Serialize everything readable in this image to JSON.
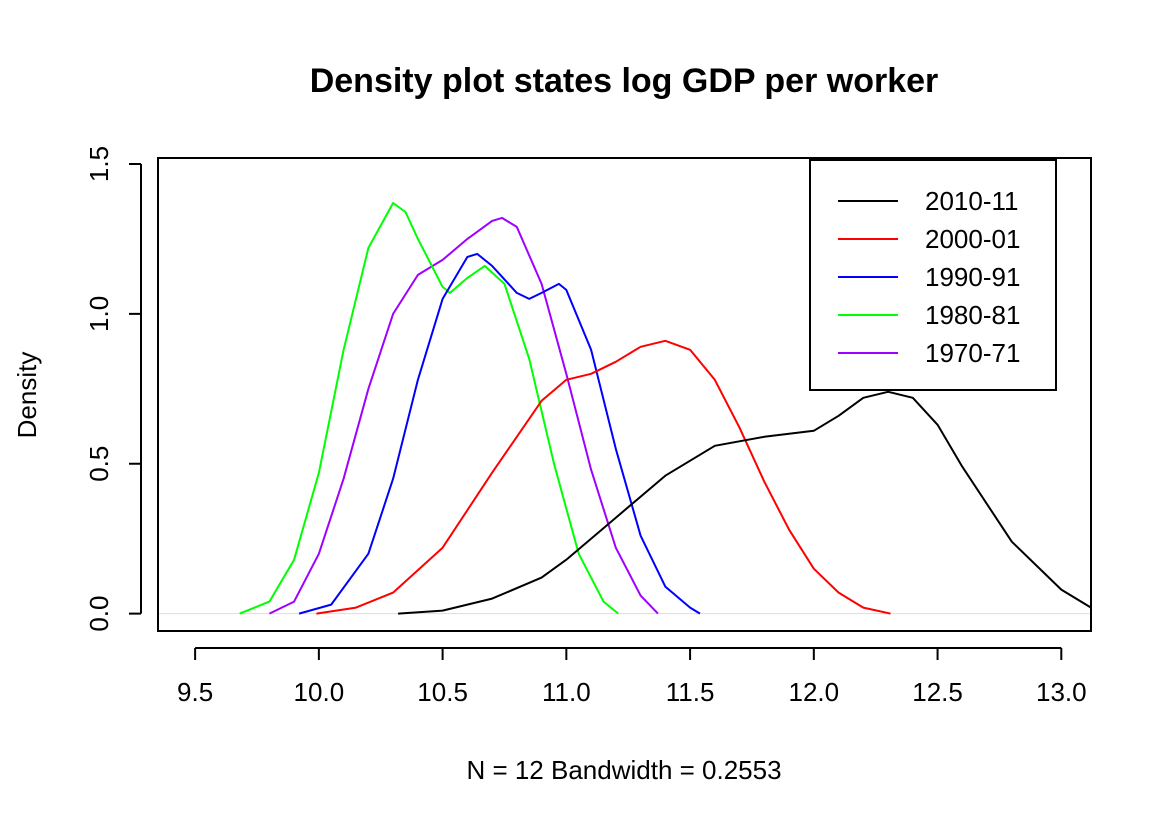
{
  "chart_data": {
    "type": "line",
    "title": "Density plot states log GDP per worker",
    "xlabel": "N = 12   Bandwidth = 0.2553",
    "ylabel": "Density",
    "xlim": [
      9.35,
      13.12
    ],
    "ylim": [
      -0.058,
      1.52
    ],
    "x_ticks": [
      9.5,
      10.0,
      10.5,
      11.0,
      11.5,
      12.0,
      12.5,
      13.0
    ],
    "x_tick_labels": [
      "9.5",
      "10.0",
      "10.5",
      "11.0",
      "11.5",
      "12.0",
      "12.5",
      "13.0"
    ],
    "y_ticks": [
      0.0,
      0.5,
      1.0,
      1.5
    ],
    "y_tick_labels": [
      "0.0",
      "0.5",
      "1.0",
      "1.5"
    ],
    "grid": false,
    "legend_position": "top-right",
    "series": [
      {
        "name": "2010-11",
        "color": "#000000",
        "points": [
          [
            10.32,
            0.0
          ],
          [
            10.5,
            0.01
          ],
          [
            10.7,
            0.05
          ],
          [
            10.9,
            0.12
          ],
          [
            11.0,
            0.18
          ],
          [
            11.2,
            0.32
          ],
          [
            11.4,
            0.46
          ],
          [
            11.6,
            0.56
          ],
          [
            11.8,
            0.59
          ],
          [
            12.0,
            0.61
          ],
          [
            12.1,
            0.66
          ],
          [
            12.2,
            0.72
          ],
          [
            12.3,
            0.74
          ],
          [
            12.4,
            0.72
          ],
          [
            12.5,
            0.63
          ],
          [
            12.6,
            0.49
          ],
          [
            12.8,
            0.24
          ],
          [
            13.0,
            0.08
          ],
          [
            13.12,
            0.02
          ]
        ]
      },
      {
        "name": "2000-01",
        "color": "#ff0000",
        "points": [
          [
            9.99,
            0.0
          ],
          [
            10.15,
            0.02
          ],
          [
            10.3,
            0.07
          ],
          [
            10.5,
            0.22
          ],
          [
            10.7,
            0.47
          ],
          [
            10.9,
            0.71
          ],
          [
            11.0,
            0.78
          ],
          [
            11.1,
            0.8
          ],
          [
            11.2,
            0.84
          ],
          [
            11.3,
            0.89
          ],
          [
            11.4,
            0.91
          ],
          [
            11.5,
            0.88
          ],
          [
            11.6,
            0.78
          ],
          [
            11.7,
            0.62
          ],
          [
            11.8,
            0.44
          ],
          [
            11.9,
            0.28
          ],
          [
            12.0,
            0.15
          ],
          [
            12.1,
            0.07
          ],
          [
            12.2,
            0.02
          ],
          [
            12.31,
            0.0
          ]
        ]
      },
      {
        "name": "1990-91",
        "color": "#0000ff",
        "points": [
          [
            9.92,
            0.0
          ],
          [
            10.05,
            0.03
          ],
          [
            10.2,
            0.2
          ],
          [
            10.3,
            0.45
          ],
          [
            10.4,
            0.78
          ],
          [
            10.5,
            1.05
          ],
          [
            10.6,
            1.19
          ],
          [
            10.64,
            1.2
          ],
          [
            10.7,
            1.16
          ],
          [
            10.8,
            1.07
          ],
          [
            10.85,
            1.05
          ],
          [
            10.9,
            1.07
          ],
          [
            10.97,
            1.1
          ],
          [
            11.0,
            1.08
          ],
          [
            11.1,
            0.88
          ],
          [
            11.2,
            0.55
          ],
          [
            11.3,
            0.26
          ],
          [
            11.4,
            0.09
          ],
          [
            11.5,
            0.02
          ],
          [
            11.54,
            0.0
          ]
        ]
      },
      {
        "name": "1980-81",
        "color": "#00ff00",
        "points": [
          [
            9.68,
            0.0
          ],
          [
            9.8,
            0.04
          ],
          [
            9.9,
            0.18
          ],
          [
            10.0,
            0.47
          ],
          [
            10.1,
            0.88
          ],
          [
            10.2,
            1.22
          ],
          [
            10.3,
            1.37
          ],
          [
            10.35,
            1.34
          ],
          [
            10.4,
            1.25
          ],
          [
            10.5,
            1.09
          ],
          [
            10.53,
            1.07
          ],
          [
            10.6,
            1.12
          ],
          [
            10.67,
            1.16
          ],
          [
            10.75,
            1.1
          ],
          [
            10.85,
            0.85
          ],
          [
            10.95,
            0.5
          ],
          [
            11.05,
            0.2
          ],
          [
            11.15,
            0.04
          ],
          [
            11.21,
            0.0
          ]
        ]
      },
      {
        "name": "1970-71",
        "color": "#a000ff",
        "points": [
          [
            9.8,
            0.0
          ],
          [
            9.9,
            0.04
          ],
          [
            10.0,
            0.2
          ],
          [
            10.1,
            0.45
          ],
          [
            10.2,
            0.75
          ],
          [
            10.3,
            1.0
          ],
          [
            10.4,
            1.13
          ],
          [
            10.5,
            1.18
          ],
          [
            10.6,
            1.25
          ],
          [
            10.7,
            1.31
          ],
          [
            10.74,
            1.32
          ],
          [
            10.8,
            1.29
          ],
          [
            10.9,
            1.1
          ],
          [
            11.0,
            0.8
          ],
          [
            11.1,
            0.48
          ],
          [
            11.2,
            0.22
          ],
          [
            11.3,
            0.06
          ],
          [
            11.37,
            0.0
          ]
        ]
      }
    ]
  }
}
